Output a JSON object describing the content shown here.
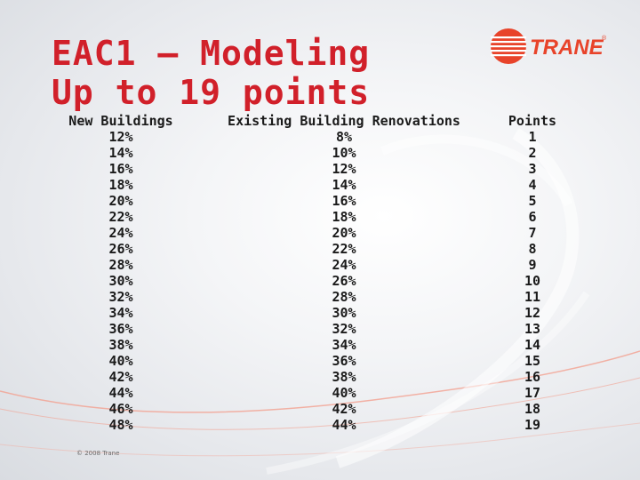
{
  "slide": {
    "title_line1": "EAC1 – Modeling",
    "title_line2": "Up to 19 points",
    "logo_text": "TRANE",
    "logo_mark": "®",
    "footer": "© 2008 Trane",
    "colors": {
      "title": "#d1202a",
      "brand": "#e8432a",
      "swirl": "#f2a090"
    }
  },
  "table": {
    "columns": [
      {
        "header": "New Buildings",
        "values": [
          "12%",
          "14%",
          "16%",
          "18%",
          "20%",
          "22%",
          "24%",
          "26%",
          "28%",
          "30%",
          "32%",
          "34%",
          "36%",
          "38%",
          "40%",
          "42%",
          "44%",
          "46%",
          "48%"
        ]
      },
      {
        "header": "Existing Building Renovations",
        "values": [
          "8%",
          "10%",
          "12%",
          "14%",
          "16%",
          "18%",
          "20%",
          "22%",
          "24%",
          "26%",
          "28%",
          "30%",
          "32%",
          "34%",
          "36%",
          "38%",
          "40%",
          "42%",
          "44%"
        ]
      },
      {
        "header": "Points",
        "values": [
          "1",
          "2",
          "3",
          "4",
          "5",
          "6",
          "7",
          "8",
          "9",
          "10",
          "11",
          "12",
          "13",
          "14",
          "15",
          "16",
          "17",
          "18",
          "19"
        ]
      }
    ]
  }
}
